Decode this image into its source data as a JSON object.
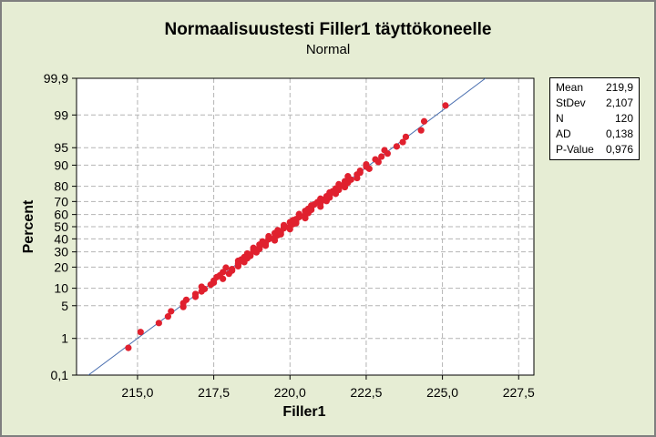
{
  "chart_data": {
    "type": "scatter",
    "title": "Normaalisuustesti Filler1 täyttökoneelle",
    "subtitle": "Normal",
    "xlabel": "Filler1",
    "ylabel": "Percent",
    "xlim": [
      213.0,
      228.0
    ],
    "ylim": [
      0.1,
      99.9
    ],
    "y_scale": "normal-probability",
    "x_ticks": [
      "215,0",
      "217,5",
      "220,0",
      "222,5",
      "225,0",
      "227,5"
    ],
    "x_tick_values": [
      215.0,
      217.5,
      220.0,
      222.5,
      225.0,
      227.5
    ],
    "y_ticks": [
      "0,1",
      "1",
      "5",
      "10",
      "20",
      "30",
      "40",
      "50",
      "60",
      "70",
      "80",
      "90",
      "95",
      "99",
      "99,9"
    ],
    "y_tick_values": [
      0.1,
      1,
      5,
      10,
      20,
      30,
      40,
      50,
      60,
      70,
      80,
      90,
      95,
      99,
      99.9
    ],
    "grid": true,
    "fit_line": {
      "mean": 219.9,
      "stdev": 2.107
    },
    "n_points": 120,
    "colors": {
      "points": "#e0202e",
      "line": "#4a6fb0",
      "grid": "#b4b4b4",
      "background": "#e6edd4"
    },
    "stats": [
      {
        "label": "Mean",
        "value": "219,9"
      },
      {
        "label": "StDev",
        "value": "2,107"
      },
      {
        "label": "N",
        "value": "120"
      },
      {
        "label": "AD",
        "value": "0,138"
      },
      {
        "label": "P-Value",
        "value": "0,976"
      }
    ]
  }
}
